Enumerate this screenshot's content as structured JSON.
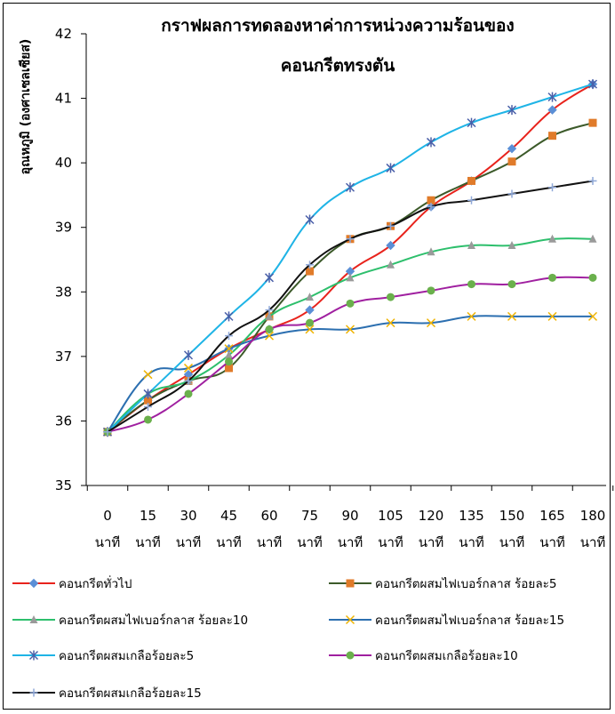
{
  "chart_data": {
    "type": "line",
    "title_lines": [
      "กราฟผลการทดลองหาค่าการหน่วงความร้อนของ",
      "คอนกรีตทรงตัน"
    ],
    "ylabel": "อุณหภูมิ (องศาเซลเซียส)",
    "ylim": [
      35,
      42
    ],
    "yticks": [
      35,
      36,
      37,
      38,
      39,
      40,
      41,
      42
    ],
    "x": [
      0,
      15,
      30,
      45,
      60,
      75,
      90,
      105,
      120,
      135,
      150,
      165,
      180
    ],
    "x_unit": "นาที",
    "grid": false,
    "legend_position": "bottom",
    "series": [
      {
        "name": "คอนกรีตทั่วไป",
        "color": "#e8231c",
        "marker": "diamond",
        "marker_color": "#5b8fd6",
        "values": [
          35.83,
          36.32,
          36.72,
          37.12,
          37.42,
          37.72,
          38.32,
          38.72,
          39.32,
          39.72,
          40.22,
          40.82,
          41.22
        ]
      },
      {
        "name": "คอนกรีตผสมไฟเบอร์กลาส ร้อยละ5",
        "color": "#3c5a2a",
        "marker": "square",
        "marker_color": "#e07b2a",
        "values": [
          35.83,
          36.32,
          36.62,
          36.82,
          37.62,
          38.32,
          38.82,
          39.02,
          39.42,
          39.72,
          40.02,
          40.42,
          40.62
        ]
      },
      {
        "name": "คอนกรีตผสมไฟเบอร์กลาส ร้อยละ10",
        "color": "#2dbf6c",
        "marker": "triangle",
        "marker_color": "#9a9a9a",
        "values": [
          35.83,
          36.42,
          36.62,
          37.02,
          37.62,
          37.92,
          38.22,
          38.42,
          38.62,
          38.72,
          38.72,
          38.82,
          38.82
        ]
      },
      {
        "name": "คอนกรีตผสมไฟเบอร์กลาส ร้อยละ15",
        "color": "#2c6fb0",
        "marker": "x",
        "marker_color": "#f0b400",
        "values": [
          35.83,
          36.72,
          36.82,
          37.12,
          37.32,
          37.42,
          37.42,
          37.52,
          37.52,
          37.62,
          37.62,
          37.62,
          37.62
        ]
      },
      {
        "name": "คอนกรีตผสมเกลือร้อยละ5",
        "color": "#1fb4e6",
        "marker": "star",
        "marker_color": "#4a5fa8",
        "values": [
          35.83,
          36.42,
          37.02,
          37.62,
          38.22,
          39.12,
          39.62,
          39.92,
          40.32,
          40.62,
          40.82,
          41.02,
          41.22
        ]
      },
      {
        "name": "คอนกรีตผสมเกลือร้อยละ10",
        "color": "#a020a0",
        "marker": "circle",
        "marker_color": "#6ab04c",
        "values": [
          35.83,
          36.02,
          36.42,
          36.92,
          37.42,
          37.52,
          37.82,
          37.92,
          38.02,
          38.12,
          38.12,
          38.22,
          38.22
        ]
      },
      {
        "name": "คอนกรีตผสมเกลือร้อยละ15",
        "color": "#111111",
        "marker": "plus",
        "marker_color": "#8fa8d8",
        "values": [
          35.83,
          36.22,
          36.62,
          37.32,
          37.72,
          38.42,
          38.82,
          39.02,
          39.32,
          39.42,
          39.52,
          39.62,
          39.72
        ]
      }
    ]
  }
}
